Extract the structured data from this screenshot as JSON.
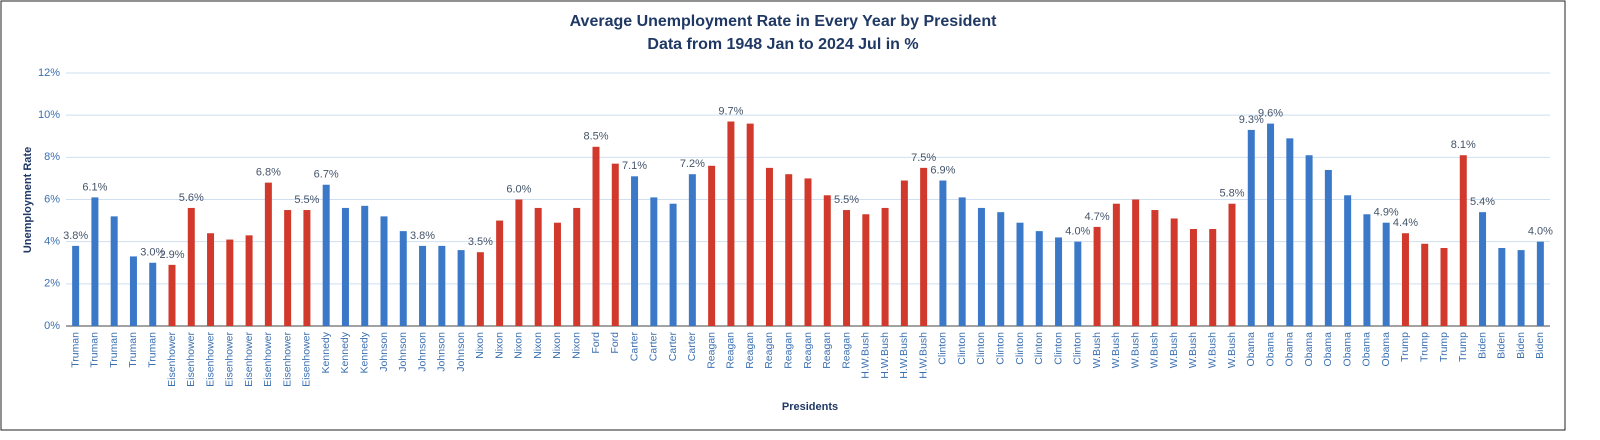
{
  "chart_data": {
    "type": "bar",
    "title": "Average Unemployment Rate in Every Year by President",
    "subtitle": "Data from 1948 Jan to 2024 Jul in %",
    "x_label": "Presidents",
    "y_label": "Unemployment Rate",
    "categories": [
      "Truman",
      "Truman",
      "Truman",
      "Truman",
      "Truman",
      "Eisenhower",
      "Eisenhower",
      "Eisenhower",
      "Eisenhower",
      "Eisenhower",
      "Eisenhower",
      "Eisenhower",
      "Eisenhower",
      "Kennedy",
      "Kennedy",
      "Kennedy",
      "Johnson",
      "Johnson",
      "Johnson",
      "Johnson",
      "Johnson",
      "Nixon",
      "Nixon",
      "Nixon",
      "Nixon",
      "Nixon",
      "Nixon",
      "Ford",
      "Ford",
      "Carter",
      "Carter",
      "Carter",
      "Carter",
      "Reagan",
      "Reagan",
      "Reagan",
      "Reagan",
      "Reagan",
      "Reagan",
      "Reagan",
      "Reagan",
      "H.W.Bush",
      "H.W.Bush",
      "H.W.Bush",
      "H.W.Bush",
      "Clinton",
      "Clinton",
      "Clinton",
      "Clinton",
      "Clinton",
      "Clinton",
      "Clinton",
      "Clinton",
      "W.Bush",
      "W.Bush",
      "W.Bush",
      "W.Bush",
      "W.Bush",
      "W.Bush",
      "W.Bush",
      "W.Bush",
      "Obama",
      "Obama",
      "Obama",
      "Obama",
      "Obama",
      "Obama",
      "Obama",
      "Obama",
      "Trump",
      "Trump",
      "Trump",
      "Trump",
      "Biden",
      "Biden",
      "Biden",
      "Biden"
    ],
    "values": [
      3.8,
      6.1,
      5.2,
      3.3,
      3.0,
      2.9,
      5.6,
      4.4,
      4.1,
      4.3,
      6.8,
      5.5,
      5.5,
      6.7,
      5.6,
      5.7,
      5.2,
      4.5,
      3.8,
      3.8,
      3.6,
      3.5,
      5.0,
      6.0,
      5.6,
      4.9,
      5.6,
      8.5,
      7.7,
      7.1,
      6.1,
      5.8,
      7.2,
      7.6,
      9.7,
      9.6,
      7.5,
      7.2,
      7.0,
      6.2,
      5.5,
      5.3,
      5.6,
      6.9,
      7.5,
      6.9,
      6.1,
      5.6,
      5.4,
      4.9,
      4.5,
      4.2,
      4.0,
      4.7,
      5.8,
      6.0,
      5.5,
      5.1,
      4.6,
      4.6,
      5.8,
      9.3,
      9.6,
      8.9,
      8.1,
      7.4,
      6.2,
      5.3,
      4.9,
      4.4,
      3.9,
      3.7,
      8.1,
      5.4,
      3.7,
      3.6,
      4.0
    ],
    "value_labels": [
      "3.8%",
      "6.1%",
      null,
      null,
      "3.0%",
      "2.9%",
      "5.6%",
      null,
      null,
      null,
      "6.8%",
      null,
      "5.5%",
      "6.7%",
      null,
      null,
      null,
      null,
      "3.8%",
      null,
      null,
      "3.5%",
      null,
      "6.0%",
      null,
      null,
      null,
      "8.5%",
      null,
      "7.1%",
      null,
      null,
      "7.2%",
      null,
      "9.7%",
      null,
      null,
      null,
      null,
      null,
      "5.5%",
      null,
      null,
      null,
      "7.5%",
      "6.9%",
      null,
      null,
      null,
      null,
      null,
      null,
      "4.0%",
      "4.7%",
      null,
      null,
      null,
      null,
      null,
      null,
      "5.8%",
      "9.3%",
      "9.6%",
      null,
      null,
      null,
      null,
      null,
      "4.9%",
      "4.4%",
      null,
      null,
      "8.1%",
      "5.4%",
      null,
      null,
      "4.0%"
    ],
    "colors": [
      "#3b79c8",
      "#3b79c8",
      "#3b79c8",
      "#3b79c8",
      "#3b79c8",
      "#d0392b",
      "#d0392b",
      "#d0392b",
      "#d0392b",
      "#d0392b",
      "#d0392b",
      "#d0392b",
      "#d0392b",
      "#3b79c8",
      "#3b79c8",
      "#3b79c8",
      "#3b79c8",
      "#3b79c8",
      "#3b79c8",
      "#3b79c8",
      "#3b79c8",
      "#d0392b",
      "#d0392b",
      "#d0392b",
      "#d0392b",
      "#d0392b",
      "#d0392b",
      "#d0392b",
      "#d0392b",
      "#3b79c8",
      "#3b79c8",
      "#3b79c8",
      "#3b79c8",
      "#d0392b",
      "#d0392b",
      "#d0392b",
      "#d0392b",
      "#d0392b",
      "#d0392b",
      "#d0392b",
      "#d0392b",
      "#d0392b",
      "#d0392b",
      "#d0392b",
      "#d0392b",
      "#3b79c8",
      "#3b79c8",
      "#3b79c8",
      "#3b79c8",
      "#3b79c8",
      "#3b79c8",
      "#3b79c8",
      "#3b79c8",
      "#d0392b",
      "#d0392b",
      "#d0392b",
      "#d0392b",
      "#d0392b",
      "#d0392b",
      "#d0392b",
      "#d0392b",
      "#3b79c8",
      "#3b79c8",
      "#3b79c8",
      "#3b79c8",
      "#3b79c8",
      "#3b79c8",
      "#3b79c8",
      "#3b79c8",
      "#d0392b",
      "#d0392b",
      "#d0392b",
      "#d0392b",
      "#3b79c8",
      "#3b79c8",
      "#3b79c8",
      "#3b79c8"
    ],
    "ylim": [
      0,
      12
    ],
    "yticks": [
      {
        "value": 0,
        "label": "0%"
      },
      {
        "value": 2,
        "label": "2%"
      },
      {
        "value": 4,
        "label": "4%"
      },
      {
        "value": 6,
        "label": "6%"
      },
      {
        "value": 8,
        "label": "8%"
      },
      {
        "value": 10,
        "label": "10%"
      },
      {
        "value": 12,
        "label": "12%"
      }
    ],
    "grid": true
  }
}
